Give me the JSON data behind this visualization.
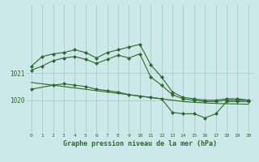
{
  "bg_color": "#cce8e8",
  "grid_color": "#aacccc",
  "line_color": "#2d6a2d",
  "x_ticks": [
    0,
    1,
    2,
    3,
    4,
    5,
    6,
    7,
    8,
    9,
    10,
    11,
    12,
    13,
    14,
    15,
    16,
    17,
    18,
    19,
    20
  ],
  "xlabel": "Graphe pression niveau de la mer (hPa)",
  "ylim": [
    1018.8,
    1023.5
  ],
  "xlim": [
    -0.5,
    20.5
  ],
  "yticks": [
    1020,
    1021
  ],
  "series": [
    {
      "x": [
        0,
        1,
        2,
        3,
        4,
        5,
        6,
        7,
        8,
        9,
        10,
        11,
        12,
        13,
        14,
        15,
        16,
        17,
        18,
        19,
        20
      ],
      "y": [
        1021.25,
        1021.6,
        1021.7,
        1021.75,
        1021.85,
        1021.75,
        1021.55,
        1021.75,
        1021.85,
        1021.95,
        1022.05,
        1021.3,
        1020.85,
        1020.3,
        1020.1,
        1020.05,
        1020.0,
        1020.0,
        1020.05,
        1020.05,
        1020.0
      ],
      "marker": "D",
      "markersize": 2.0,
      "linewidth": 0.8
    },
    {
      "x": [
        0,
        1,
        2,
        3,
        4,
        5,
        6,
        7,
        8,
        9,
        10,
        11,
        12,
        13,
        14,
        15,
        16,
        17,
        18,
        19,
        20
      ],
      "y": [
        1021.1,
        1021.25,
        1021.45,
        1021.55,
        1021.6,
        1021.5,
        1021.35,
        1021.5,
        1021.65,
        1021.55,
        1021.7,
        1020.85,
        1020.55,
        1020.2,
        1020.05,
        1020.0,
        1019.95,
        1019.95,
        1020.0,
        1020.0,
        1020.0
      ],
      "marker": "D",
      "markersize": 2.0,
      "linewidth": 0.8
    },
    {
      "x": [
        0,
        1,
        2,
        3,
        4,
        5,
        6,
        7,
        8,
        9,
        10,
        11,
        12,
        13,
        14,
        15,
        16,
        17,
        18,
        19,
        20
      ],
      "y": [
        1020.65,
        1020.6,
        1020.55,
        1020.5,
        1020.45,
        1020.4,
        1020.35,
        1020.3,
        1020.25,
        1020.2,
        1020.15,
        1020.1,
        1020.05,
        1020.0,
        1019.95,
        1019.92,
        1019.9,
        1019.88,
        1019.87,
        1019.86,
        1019.85
      ],
      "marker": null,
      "markersize": 0,
      "linewidth": 0.8
    },
    {
      "x": [
        0,
        2,
        3,
        4,
        5,
        6,
        7,
        8,
        9,
        10,
        11,
        12,
        13,
        14,
        15,
        16,
        17,
        18,
        19,
        20
      ],
      "y": [
        1020.4,
        1020.55,
        1020.6,
        1020.55,
        1020.5,
        1020.4,
        1020.35,
        1020.3,
        1020.2,
        1020.15,
        1020.1,
        1020.05,
        1019.55,
        1019.5,
        1019.5,
        1019.35,
        1019.5,
        1019.95,
        1019.95,
        1019.95
      ],
      "marker": "D",
      "markersize": 2.0,
      "linewidth": 0.8
    }
  ]
}
